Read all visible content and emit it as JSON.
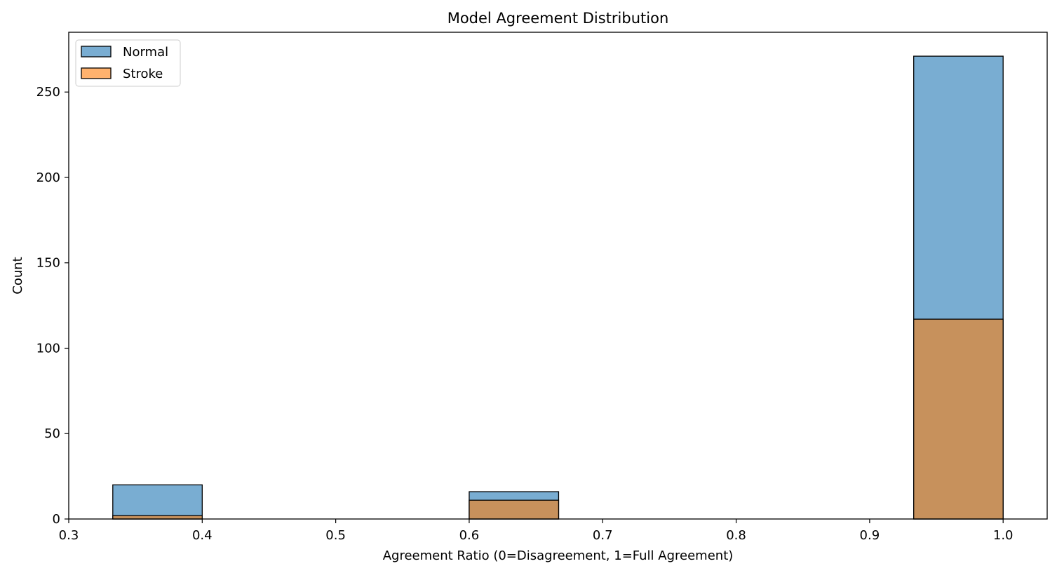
{
  "chart_data": {
    "type": "bar",
    "title": "Model Agreement Distribution",
    "xlabel": "Agreement Ratio (0=Disagreement, 1=Full Agreement)",
    "ylabel": "Count",
    "xlim": [
      0.3,
      1.033
    ],
    "ylim": [
      0,
      285
    ],
    "xticks": [
      0.3,
      0.4,
      0.5,
      0.6,
      0.7,
      0.8,
      0.9,
      1.0
    ],
    "xtick_labels": [
      "0.3",
      "0.4",
      "0.5",
      "0.6",
      "0.7",
      "0.8",
      "0.9",
      "1.0"
    ],
    "yticks": [
      0,
      50,
      100,
      150,
      200,
      250
    ],
    "ytick_labels": [
      "0",
      "50",
      "100",
      "150",
      "200",
      "250"
    ],
    "grid": false,
    "legend_position": "top-left",
    "bin_edges": [
      0.333,
      0.4,
      0.467,
      0.533,
      0.6,
      0.667,
      0.733,
      0.8,
      0.867,
      0.933,
      1.0
    ],
    "series": [
      {
        "name": "Normal",
        "color": "#1f77b4",
        "values": [
          20,
          0,
          0,
          0,
          16,
          0,
          0,
          0,
          0,
          271
        ]
      },
      {
        "name": "Stroke",
        "color": "#ff7f0e",
        "values": [
          2,
          0,
          0,
          0,
          11,
          0,
          0,
          0,
          0,
          117
        ]
      }
    ]
  }
}
